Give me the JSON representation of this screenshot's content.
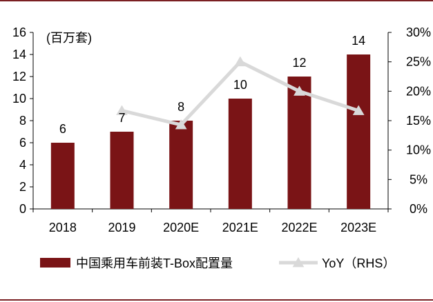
{
  "chart_data": {
    "type": "bar",
    "categories": [
      "2018",
      "2019",
      "2020E",
      "2021E",
      "2022E",
      "2023E"
    ],
    "series": [
      {
        "name": "中国乘用车前装T-Box配置量",
        "type": "bar",
        "axis": "left",
        "values": [
          6,
          7,
          8,
          10,
          12,
          14
        ],
        "color": "#7a1416"
      },
      {
        "name": "YoY（RHS）",
        "type": "line",
        "axis": "right",
        "values": [
          null,
          16.7,
          14.3,
          25.0,
          20.0,
          16.7
        ],
        "color": "#d9d9d9",
        "marker": "triangle"
      }
    ],
    "data_labels": [
      "6",
      "7",
      "8",
      "10",
      "12",
      "14"
    ],
    "ylabel": "(百万套)",
    "ylim": [
      0,
      16
    ],
    "yticks": [
      "0",
      "2",
      "4",
      "6",
      "8",
      "10",
      "12",
      "14",
      "16"
    ],
    "y2lim": [
      0,
      30
    ],
    "y2ticks": [
      "0%",
      "5%",
      "10%",
      "15%",
      "20%",
      "25%",
      "30%"
    ],
    "grid": false,
    "legend_position": "bottom"
  }
}
